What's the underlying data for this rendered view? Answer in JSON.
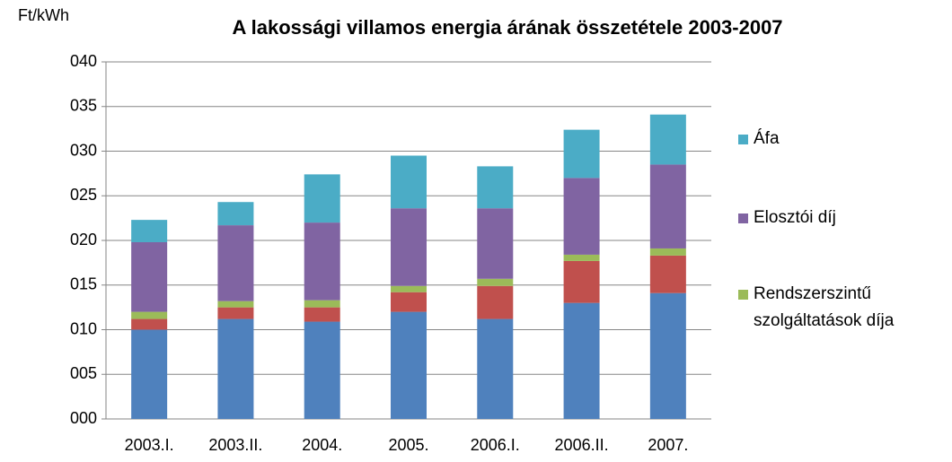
{
  "chart_data": {
    "type": "stacked_bar",
    "title": "A lakossági villamos energia árának összetétele 2003-2007",
    "y_label": "Ft/kWh",
    "categories": [
      "2003.I.",
      "2003.II.",
      "2004.",
      "2005.",
      "2006.I.",
      "2006.II.",
      "2007."
    ],
    "series": [
      {
        "color": "#4f81bd",
        "values": [
          10.0,
          11.2,
          10.9,
          12.0,
          11.2,
          13.0,
          14.1
        ]
      },
      {
        "color": "#c0504d",
        "values": [
          1.2,
          1.3,
          1.6,
          2.2,
          3.7,
          4.7,
          4.2
        ]
      },
      {
        "name": "Rendszerszintű szolgáltatások díja",
        "color": "#9bbb59",
        "values": [
          0.8,
          0.7,
          0.8,
          0.7,
          0.8,
          0.7,
          0.8
        ]
      },
      {
        "name": "Elosztói díj",
        "color": "#8064a2",
        "values": [
          7.8,
          8.5,
          8.7,
          8.7,
          7.9,
          8.6,
          9.4
        ]
      },
      {
        "name": "Áfa",
        "color": "#4bacc6",
        "values": [
          2.5,
          2.6,
          5.4,
          5.9,
          4.7,
          5.4,
          5.6
        ]
      }
    ],
    "ylim": [
      0,
      40
    ],
    "yticks": [
      {
        "value": 0,
        "label": "000"
      },
      {
        "value": 5,
        "label": "005"
      },
      {
        "value": 10,
        "label": "010"
      },
      {
        "value": 15,
        "label": "015"
      },
      {
        "value": 20,
        "label": "020"
      },
      {
        "value": 25,
        "label": "025"
      },
      {
        "value": 30,
        "label": "030"
      },
      {
        "value": 35,
        "label": "035"
      },
      {
        "value": 40,
        "label": "040"
      }
    ],
    "grid": true,
    "legend": "right"
  }
}
